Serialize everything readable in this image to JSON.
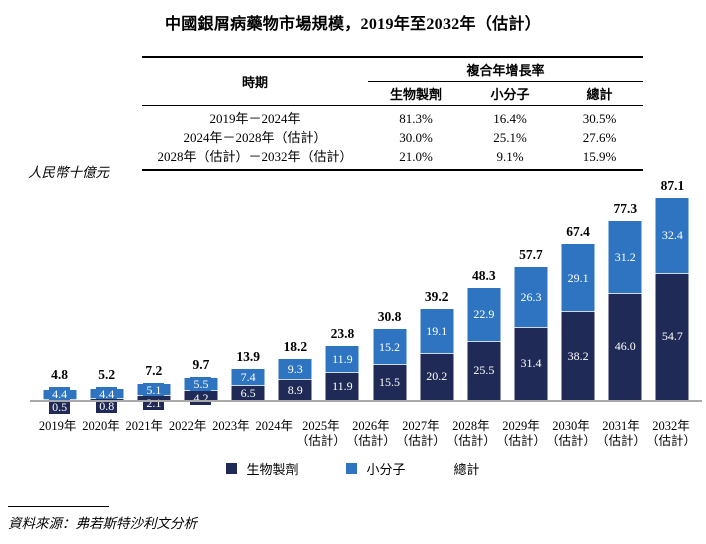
{
  "title": "中國銀屑病藥物市場規模，2019年至2032年（估計）",
  "table": {
    "period_header": "時期",
    "cagr_header": "複合年增長率",
    "columns": [
      "生物製劑",
      "小分子",
      "總計"
    ],
    "rows": [
      {
        "period": "2019年－2024年",
        "biologics": "81.3%",
        "small_molecule": "16.4%",
        "total": "30.5%"
      },
      {
        "period": "2024年－2028年（估計）",
        "biologics": "30.0%",
        "small_molecule": "25.1%",
        "total": "27.6%"
      },
      {
        "period": "2028年（估計）－2032年（估計）",
        "biologics": "21.0%",
        "small_molecule": "9.1%",
        "total": "15.9%"
      }
    ]
  },
  "y_axis_label": "人民幣十億元",
  "chart_data": {
    "type": "bar",
    "stacked": true,
    "title": "中國銀屑病藥物市場規模，2019年至2032年（估計）",
    "ylabel": "人民幣十億元",
    "ylim": [
      0,
      90
    ],
    "grid": false,
    "legend_position": "bottom",
    "categories": [
      "2019年",
      "2020年",
      "2021年",
      "2022年",
      "2023年",
      "2024年",
      "2025年",
      "2026年",
      "2027年",
      "2028年",
      "2029年",
      "2030年",
      "2031年",
      "2032年"
    ],
    "category_notes": [
      "",
      "",
      "",
      "",
      "",
      "",
      "（估計）",
      "（估計）",
      "（估計）",
      "（估計）",
      "（估計）",
      "（估計）",
      "（估計）",
      "（估計）"
    ],
    "series": [
      {
        "name": "生物製劑",
        "color": "#1f2a56",
        "values": [
          0.5,
          0.8,
          2.1,
          4.2,
          6.5,
          8.9,
          11.9,
          15.5,
          20.2,
          25.5,
          31.4,
          38.2,
          46.0,
          54.7
        ],
        "labels": [
          "0.5",
          "0.8",
          "2.1",
          "4.2",
          "6.5",
          "8.9",
          "11.9",
          "15.5",
          "20.2",
          "25.5",
          "31.4",
          "38.2",
          "46.0",
          "54.7"
        ]
      },
      {
        "name": "小分子",
        "color": "#2e74c0",
        "values": [
          4.4,
          4.4,
          5.1,
          5.5,
          7.4,
          9.3,
          11.9,
          15.2,
          19.1,
          22.9,
          26.3,
          29.1,
          31.2,
          32.4
        ],
        "labels": [
          "4.4",
          "4.4",
          "5.1",
          "5.5",
          "7.4",
          "9.3",
          "11.9",
          "15.2",
          "19.1",
          "22.9",
          "26.3",
          "29.1",
          "31.2",
          "32.4"
        ]
      }
    ],
    "totals": [
      4.8,
      5.2,
      7.2,
      9.7,
      13.9,
      18.2,
      23.8,
      30.8,
      39.2,
      48.3,
      57.7,
      67.4,
      77.3,
      87.1
    ],
    "total_labels": [
      "4.8",
      "5.2",
      "7.2",
      "9.7",
      "13.9",
      "18.2",
      "23.8",
      "30.8",
      "39.2",
      "48.3",
      "57.7",
      "67.4",
      "77.3",
      "87.1"
    ]
  },
  "legend": {
    "items": [
      {
        "label": "生物製劑",
        "color": "#1f2a56"
      },
      {
        "label": "小分子",
        "color": "#2e74c0"
      },
      {
        "label": "總計",
        "color": ""
      }
    ]
  },
  "source": "資料來源：弗若斯特沙利文分析"
}
